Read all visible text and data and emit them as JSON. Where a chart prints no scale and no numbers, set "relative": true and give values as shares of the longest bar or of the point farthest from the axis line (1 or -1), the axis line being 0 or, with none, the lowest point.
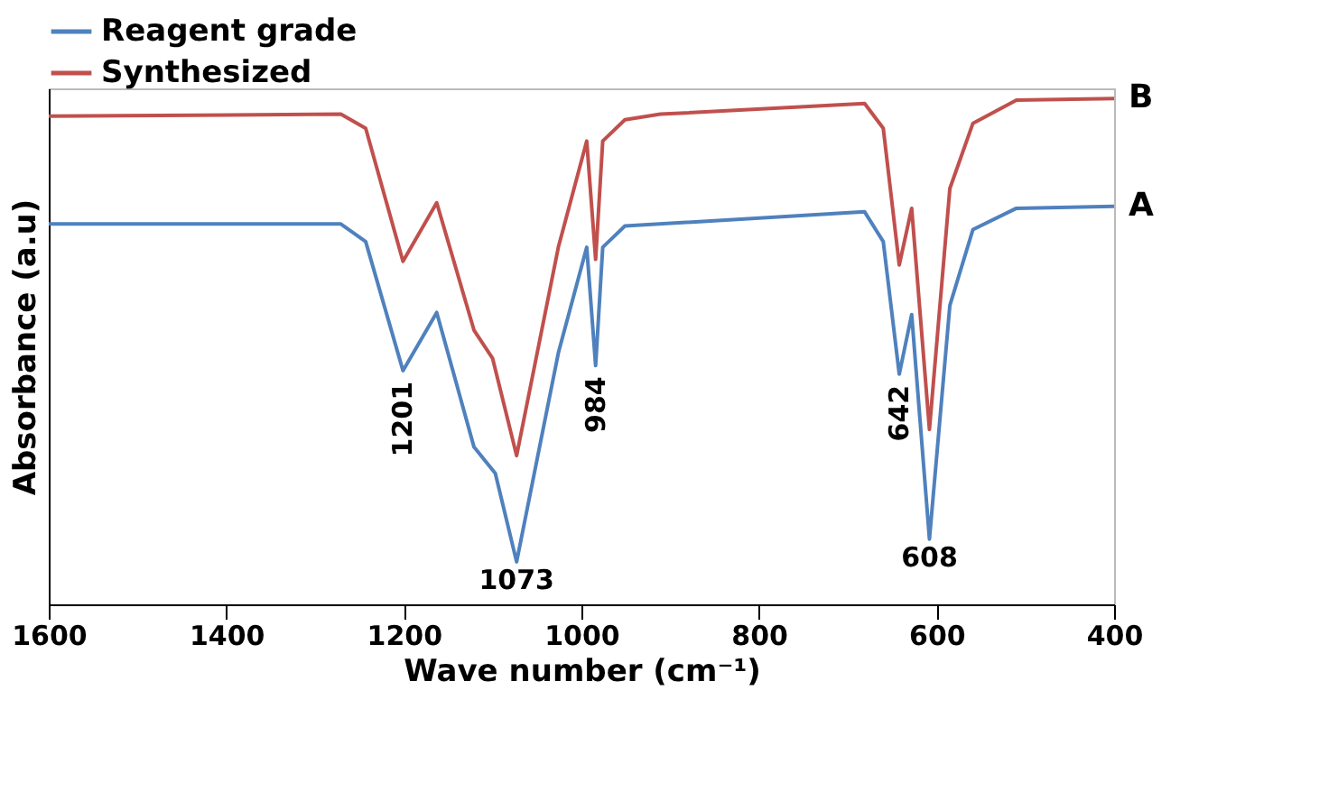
{
  "chart_data": {
    "type": "line",
    "xlabel": "Wave number (cm⁻¹)",
    "ylabel": "Absorbance (a.u)",
    "xlim": [
      1600,
      400
    ],
    "xticks": [
      1600,
      1400,
      1200,
      1000,
      800,
      600,
      400
    ],
    "relative": true,
    "grid": false,
    "legend": "top",
    "tick_labels": "x",
    "line_style": "solid",
    "marker": "none",
    "series": [
      {
        "name": "Reagent grade",
        "color": "#4f81bd",
        "x": [
          1600,
          1271,
          1243,
          1201,
          1163,
          1121,
          1097,
          1073,
          1026,
          994,
          984,
          976,
          951,
          681,
          660,
          642,
          628,
          608,
          585,
          559,
          510,
          400
        ],
        "values": [
          0.752,
          0.752,
          0.717,
          0.462,
          0.577,
          0.311,
          0.259,
          0.084,
          0.497,
          0.706,
          0.472,
          0.706,
          0.748,
          0.776,
          0.717,
          0.455,
          0.573,
          0.129,
          0.591,
          0.741,
          0.783,
          0.787
        ]
      },
      {
        "name": "Synthesized",
        "color": "#c0504d",
        "x": [
          1600,
          1271,
          1243,
          1201,
          1163,
          1121,
          1100,
          1073,
          1026,
          994,
          984,
          976,
          951,
          911,
          681,
          660,
          642,
          628,
          608,
          585,
          559,
          510,
          400
        ],
        "values": [
          0.965,
          0.969,
          0.941,
          0.678,
          0.794,
          0.542,
          0.486,
          0.294,
          0.706,
          0.916,
          0.682,
          0.916,
          0.958,
          0.969,
          0.99,
          0.941,
          0.671,
          0.783,
          0.346,
          0.822,
          0.951,
          0.997,
          1.0
        ]
      }
    ],
    "annotations": [
      {
        "text": "1201",
        "x": 1201,
        "y": 0.462
      },
      {
        "text": "1073",
        "x": 1073,
        "y": 0.084
      },
      {
        "text": "984",
        "x": 984,
        "y": 0.472
      },
      {
        "text": "642",
        "x": 642,
        "y": 0.455
      },
      {
        "text": "608",
        "x": 608,
        "y": 0.129
      },
      {
        "text": "A",
        "x": 400,
        "y": 0.787
      },
      {
        "text": "B",
        "x": 400,
        "y": 1.0
      }
    ]
  }
}
